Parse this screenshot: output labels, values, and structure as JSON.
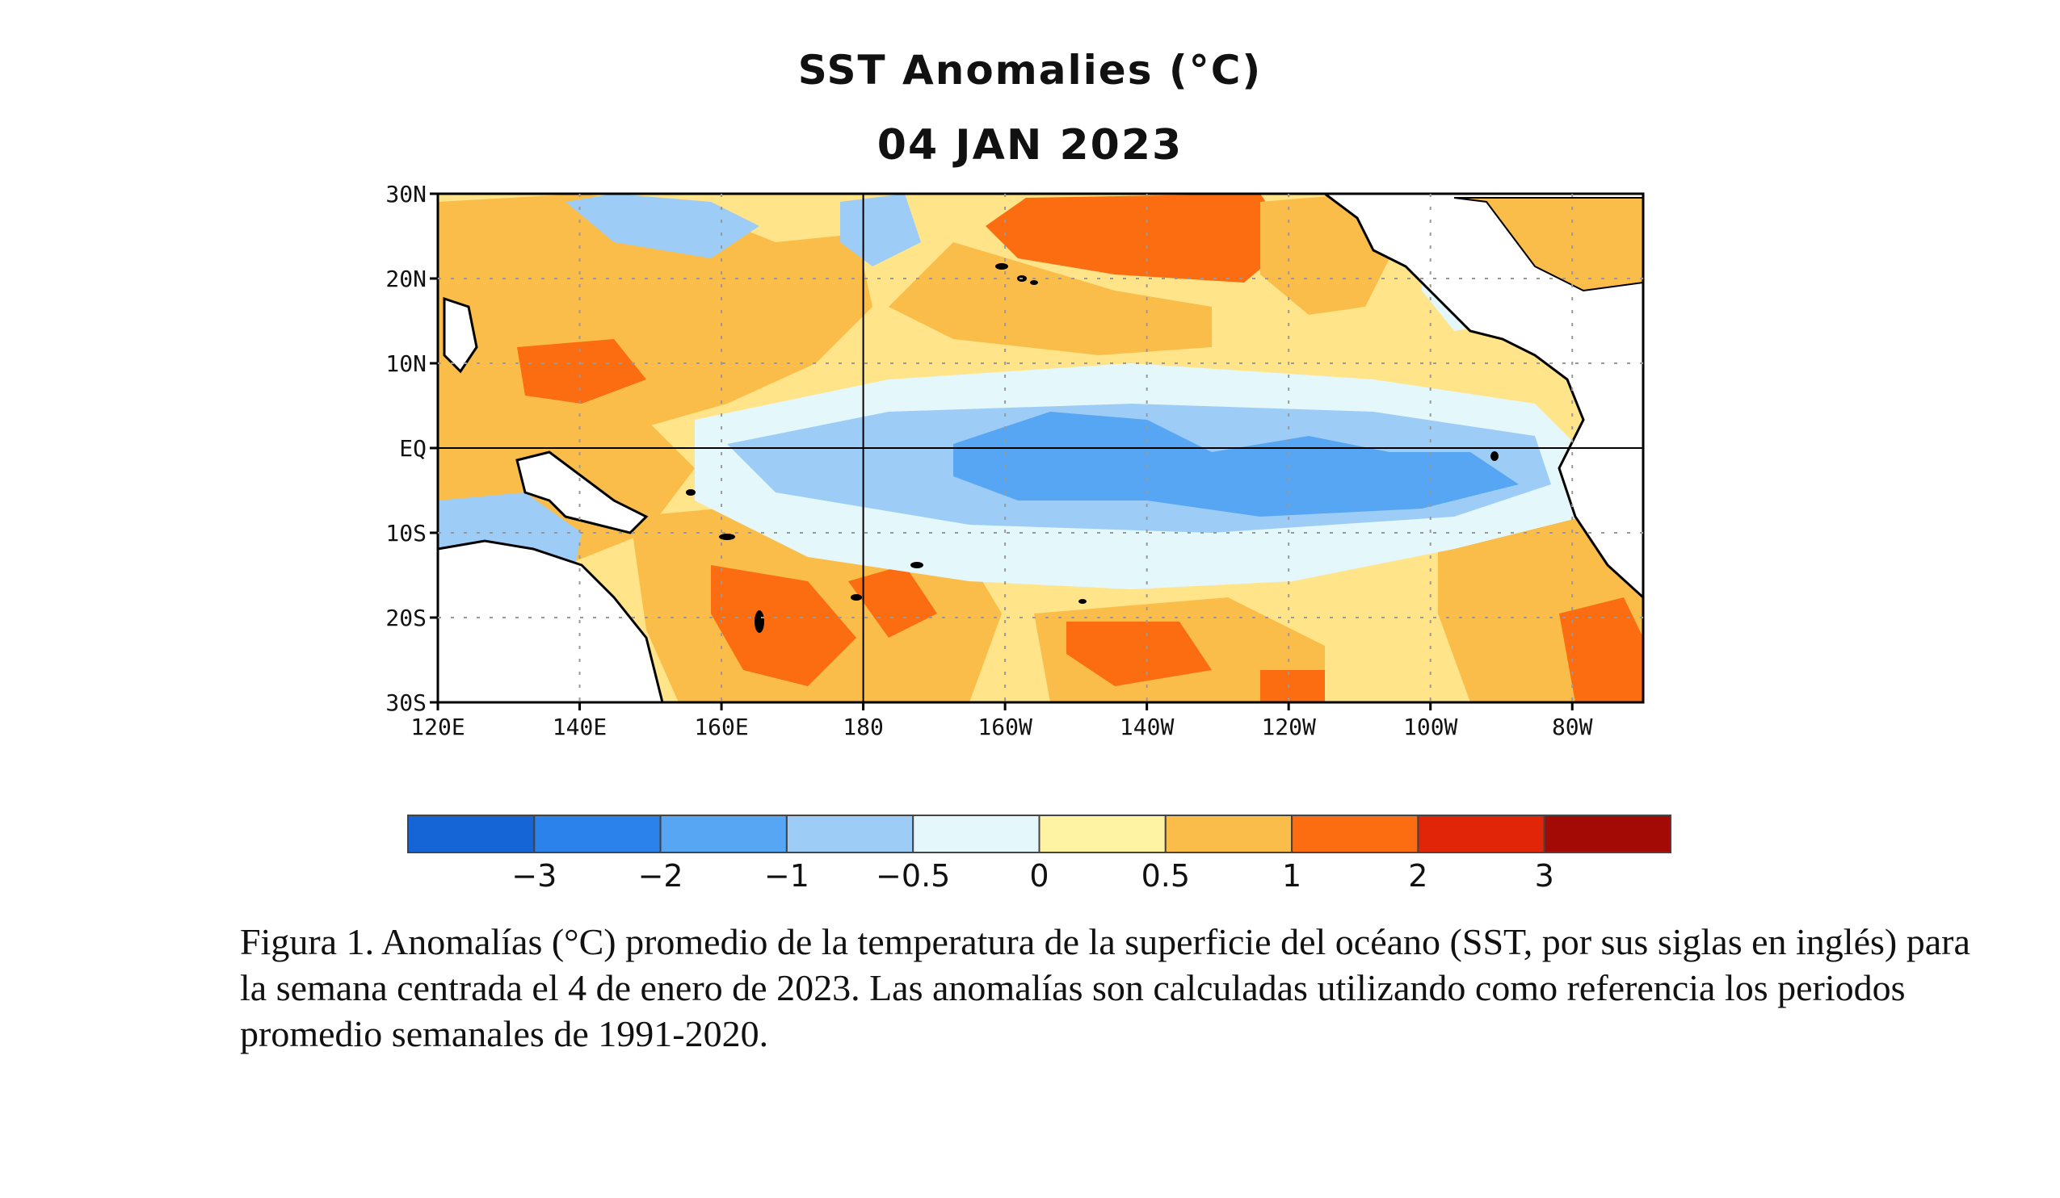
{
  "figure": {
    "title": "SST Anomalies (°C)",
    "date": "04 JAN 2023",
    "caption": "Figura 1. Anomalías (°C) promedio de la temperatura de la superficie del océano (SST, por sus siglas en inglés) para la semana centrada el 4 de enero de 2023. Las anomalías son calculadas utilizando como referencia los periodos promedio semanales de 1991-2020."
  },
  "map": {
    "lat_ticks": [
      "30N",
      "20N",
      "10N",
      "EQ",
      "10S",
      "20S",
      "30S"
    ],
    "lon_ticks": [
      "120E",
      "140E",
      "160E",
      "180",
      "160W",
      "140W",
      "120W",
      "100W",
      "80W"
    ],
    "lon_range": [
      120,
      290
    ],
    "lat_range": [
      -30,
      30
    ]
  },
  "colorbar": {
    "colors": [
      "#1565d6",
      "#2a82ea",
      "#56a6f4",
      "#9dcdf7",
      "#e4f8fb",
      "#fdf3a2",
      "#fbbd4a",
      "#fb6d10",
      "#e02508",
      "#a30a05"
    ],
    "tick_labels": [
      "−3",
      "−2",
      "−1",
      "−0.5",
      "0",
      "0.5",
      "1",
      "2",
      "3"
    ]
  }
}
